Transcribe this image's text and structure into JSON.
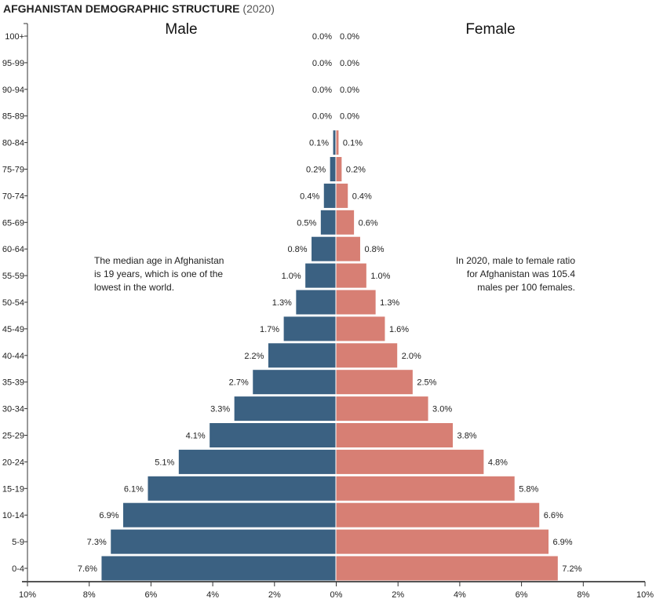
{
  "chart_data": {
    "type": "bar",
    "orientation": "horizontal-population-pyramid",
    "title": "AFGHANISTAN DEMOGRAPHIC STRUCTURE",
    "subtitle": "(2020)",
    "categories": [
      "100+",
      "95-99",
      "90-94",
      "85-89",
      "80-84",
      "75-79",
      "70-74",
      "65-69",
      "60-64",
      "55-59",
      "50-54",
      "45-49",
      "40-44",
      "35-39",
      "30-34",
      "25-29",
      "20-24",
      "15-19",
      "10-14",
      "5-9",
      "0-4"
    ],
    "series": [
      {
        "name": "Male",
        "color": "#3b6182",
        "values": [
          0.0,
          0.0,
          0.0,
          0.0,
          0.1,
          0.2,
          0.4,
          0.5,
          0.8,
          1.0,
          1.3,
          1.7,
          2.2,
          2.7,
          3.3,
          4.1,
          5.1,
          6.1,
          6.9,
          7.3,
          7.6
        ],
        "labels": [
          "0.0%",
          "0.0%",
          "0.0%",
          "0.0%",
          "0.1%",
          "0.2%",
          "0.4%",
          "0.5%",
          "0.8%",
          "1.0%",
          "1.3%",
          "1.7%",
          "2.2%",
          "2.7%",
          "3.3%",
          "4.1%",
          "5.1%",
          "6.1%",
          "6.9%",
          "7.3%",
          "7.6%"
        ]
      },
      {
        "name": "Female",
        "color": "#d77f74",
        "values": [
          0.0,
          0.0,
          0.0,
          0.0,
          0.1,
          0.2,
          0.4,
          0.6,
          0.8,
          1.0,
          1.3,
          1.6,
          2.0,
          2.5,
          3.0,
          3.8,
          4.8,
          5.8,
          6.6,
          6.9,
          7.2
        ],
        "labels": [
          "0.0%",
          "0.0%",
          "0.0%",
          "0.0%",
          "0.1%",
          "0.2%",
          "0.4%",
          "0.6%",
          "0.8%",
          "1.0%",
          "1.3%",
          "1.6%",
          "2.0%",
          "2.5%",
          "3.0%",
          "3.8%",
          "4.8%",
          "5.8%",
          "6.6%",
          "6.9%",
          "7.2%"
        ]
      }
    ],
    "xlim": [
      -10,
      10
    ],
    "xticks": [
      "10%",
      "8%",
      "6%",
      "4%",
      "2%",
      "0%",
      "2%",
      "4%",
      "6%",
      "8%",
      "10%"
    ],
    "grid": false,
    "annotations": {
      "left": [
        "The median age in Afghanistan",
        "is 19 years, which is one of the",
        "lowest in the world."
      ],
      "right": [
        "In 2020, male to female ratio",
        "for Afghanistan was 105.4",
        "males per 100 females."
      ]
    }
  }
}
